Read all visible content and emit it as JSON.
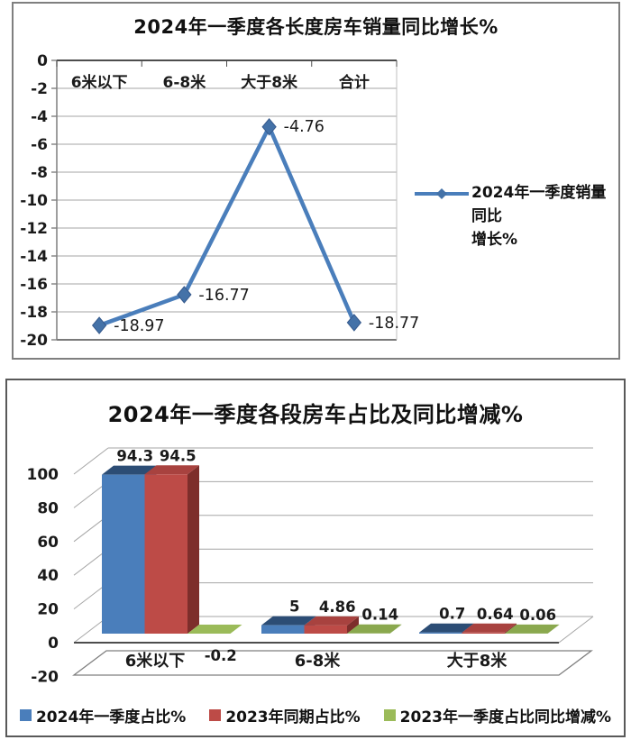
{
  "chart1": {
    "legend_lines": [
      "2024年一季度销量同比",
      "增长%"
    ],
    "chart_data": {
      "type": "line",
      "title": "2024年一季度各长度房车销量同比增长%",
      "categories": [
        "6米以下",
        "6-8米",
        "大于8米",
        "合计"
      ],
      "series": [
        {
          "name": "2024年一季度销量同比增长%",
          "color": "#4a7ebb",
          "marker": "diamond",
          "values": [
            -18.97,
            -16.77,
            -4.76,
            -18.77
          ],
          "point_labels": [
            "-18.97",
            "-16.77",
            "-4.76",
            "-18.77"
          ]
        }
      ],
      "yticks": [
        0,
        -2,
        -4,
        -6,
        -8,
        -10,
        -12,
        -14,
        -16,
        -18,
        -20
      ],
      "ylim": [
        -20,
        0
      ],
      "xlabel": "",
      "ylabel": "",
      "grid": true,
      "legend_position": "right"
    }
  },
  "chart2": {
    "chart_data": {
      "type": "bar",
      "style": "3d-clustered-column",
      "title": "2024年一季度各段房车占比及同比增减%",
      "categories": [
        "6米以下",
        "6-8米",
        "大于8米"
      ],
      "series": [
        {
          "name": "2024年一季度占比%",
          "color": "#4a7ebb",
          "top_color": "#2c4d75",
          "side_color": "#365f91",
          "values": [
            94.3,
            5,
            0.7
          ],
          "point_labels": [
            "94.3",
            "5",
            "0.7"
          ]
        },
        {
          "name": "2023年同期占比%",
          "color": "#bd4b47",
          "top_color": "#a8423f",
          "side_color": "#7d2e2b",
          "values": [
            94.5,
            4.86,
            0.64
          ],
          "point_labels": [
            "94.5",
            "4.86",
            "0.64"
          ]
        },
        {
          "name": "2023年一季度占比同比增减%",
          "color": "#9bbb59",
          "top_color": "#8aa84e",
          "side_color": "#77933c",
          "values": [
            -0.2,
            0.14,
            0.06
          ],
          "point_labels": [
            "-0.2",
            "0.14",
            "0.06"
          ]
        }
      ],
      "yticks": [
        100,
        80,
        60,
        40,
        20,
        0,
        -20
      ],
      "ylim": [
        -20,
        100
      ],
      "xlabel": "",
      "ylabel": "",
      "grid": true,
      "legend_position": "bottom"
    }
  }
}
